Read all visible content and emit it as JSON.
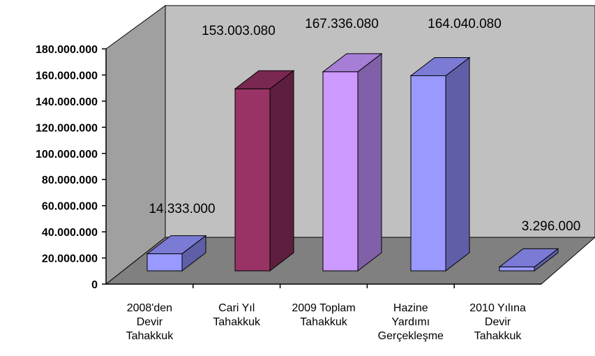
{
  "chart_data": {
    "type": "bar",
    "style": "3d",
    "title": "",
    "xlabel": "",
    "ylabel": "",
    "ylim": [
      0,
      180000000
    ],
    "grid": false,
    "legend": "none",
    "yticks": [
      "0",
      "20.000.000",
      "40.000.000",
      "60.000.000",
      "80.000.000",
      "100.000.000",
      "120.000.000",
      "140.000.000",
      "160.000.000",
      "180.000.000"
    ],
    "categories": [
      [
        "2008'den",
        "Devir",
        "Tahakkuk"
      ],
      [
        "Cari Yıl",
        "Tahakkuk"
      ],
      [
        "2009 Toplam",
        "Tahakkuk"
      ],
      [
        "Hazine",
        "Yardımı",
        "Gerçekleşme"
      ],
      [
        "2010 Yılına",
        "Devir",
        "Tahakkuk"
      ]
    ],
    "values": [
      14333000,
      153003080,
      167336080,
      164040080,
      3296000
    ],
    "data_labels": [
      "14.333.000",
      "153.003.080",
      "167.336.080",
      "164.040.080",
      "3.296.000"
    ],
    "colors": {
      "wall": "#c0c0c0",
      "floor": "#808080",
      "bars": [
        {
          "front": "#9999ff",
          "side": "#5f5fa8",
          "top": "#7b7bd6"
        },
        {
          "front": "#993366",
          "side": "#5e1f3e",
          "top": "#7a2851"
        },
        {
          "front": "#cc99ff",
          "side": "#8060a8",
          "top": "#a67ed6"
        },
        {
          "front": "#9999ff",
          "side": "#5f5fa8",
          "top": "#7b7bd6"
        },
        {
          "front": "#9999ff",
          "side": "#5f5fa8",
          "top": "#7b7bd6"
        }
      ]
    }
  }
}
